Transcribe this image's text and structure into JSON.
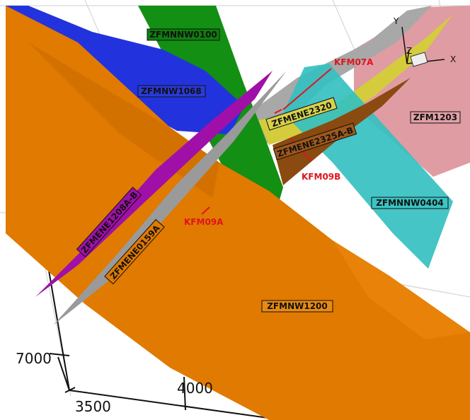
{
  "zones": {
    "zfmnnw0100": "ZFMNNW0100",
    "zfmnw1068": "ZFMNW1068",
    "zfmene2320": "ZFMENE2320",
    "zfmene2325ab": "ZFMENE2325A-B",
    "zfm1203": "ZFM1203",
    "zfmnnw0404": "ZFMNNW0404",
    "zfmene1208ab": "ZFMENE1208A-B",
    "zfmene0159a": "ZFMENE0159A",
    "zfmnw1200": "ZFMNW1200"
  },
  "boreholes": {
    "kfm07a": "KFM07A",
    "kfm09b": "KFM09B",
    "kfm09a": "KFM09A"
  },
  "axes": {
    "tick_7000": "7000",
    "tick_4000": "4000",
    "tick_3500": "3500"
  },
  "triad": {
    "x": "X",
    "y": "Y",
    "z": "Z"
  },
  "colors": {
    "orange": "#e07a00",
    "blue": "#2233dd",
    "green": "#0f8a0f",
    "cyan": "#35c0c0",
    "pink": "#e09ca3",
    "magenta": "#a010a8",
    "gray": "#9a9a9a",
    "yellow": "#d8d24a",
    "brown": "#8a4a10",
    "borehole": "#e0141e"
  }
}
